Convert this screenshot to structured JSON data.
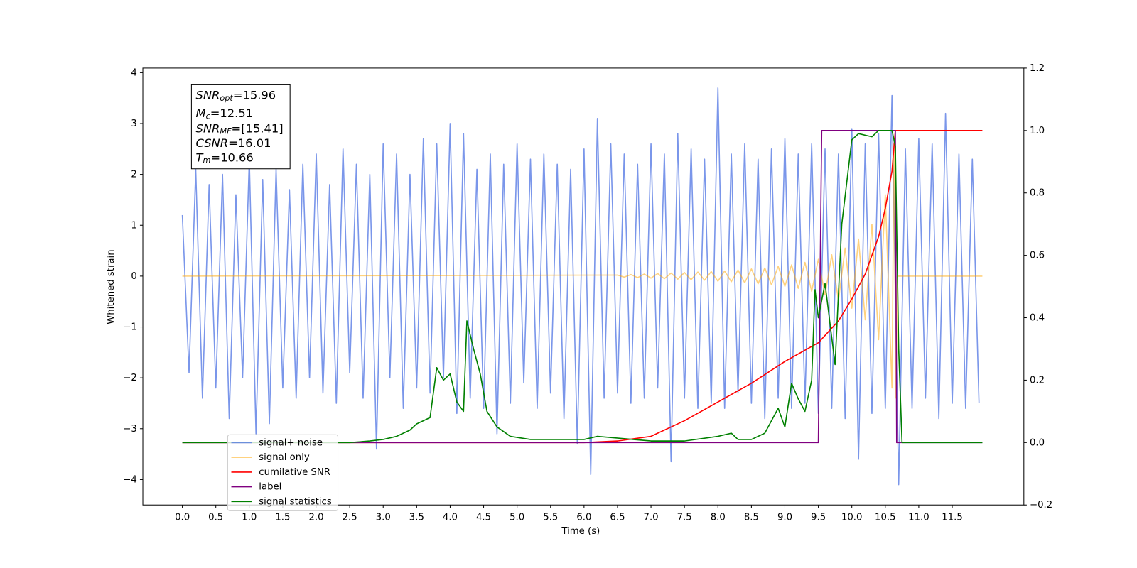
{
  "chart_data": {
    "type": "line",
    "xlabel": "Time (s)",
    "ylabel": "Whitened strain",
    "xlim": [
      -0.59,
      12.57
    ],
    "ylim": [
      -4.5,
      4.09
    ],
    "y2lim": [
      -0.2,
      1.2
    ],
    "xticks": [
      {
        "value": 0,
        "label": "0.0"
      },
      0.5,
      {
        "value": 1,
        "label": "1.0"
      },
      1.5,
      {
        "value": 2,
        "label": "2.0"
      },
      2.5,
      {
        "value": 3,
        "label": "3.0"
      },
      3.5,
      {
        "value": 4,
        "label": "4.0"
      },
      4.5,
      {
        "value": 5,
        "label": "5.0"
      },
      5.5,
      {
        "value": 6,
        "label": "6.0"
      },
      6.5,
      {
        "value": 7,
        "label": "7.0"
      },
      7.5,
      {
        "value": 8,
        "label": "8.0"
      },
      8.5,
      {
        "value": 9,
        "label": "9.0"
      },
      9.5,
      {
        "value": 10,
        "label": "10.0"
      },
      10.5,
      {
        "value": 11,
        "label": "11.0"
      },
      11.5
    ],
    "yticks": [
      {
        "value": -4,
        "label": "−4"
      },
      {
        "value": -3,
        "label": "−3"
      },
      {
        "value": -2,
        "label": "−2"
      },
      {
        "value": -1,
        "label": "−1"
      },
      0,
      1,
      2,
      3,
      4
    ],
    "y2ticks": [
      {
        "value": -0.2,
        "label": "−0.2"
      },
      {
        "value": 0,
        "label": "0.0"
      },
      0.2,
      0.4,
      0.6,
      0.8,
      {
        "value": 1,
        "label": "1.0"
      },
      1.2
    ],
    "legend": "lower left",
    "annotations": [
      {
        "base": "SNR",
        "sub": "opt",
        "text": "=15.96"
      },
      {
        "base": "M",
        "sub": "c",
        "text": "=12.51"
      },
      {
        "base": "SNR",
        "sub": "MF",
        "text": "=[15.41]"
      },
      {
        "base": "CSNR",
        "sub": null,
        "text": "=16.01"
      },
      {
        "base": "T",
        "sub": "m",
        "text": "=10.66"
      }
    ],
    "series": [
      {
        "name": "signal+ noise",
        "color": "#4169e1",
        "alpha": 0.7,
        "x": [
          0,
          0.1,
          0.2,
          0.3,
          0.4,
          0.5,
          0.6,
          0.7,
          0.8,
          0.9,
          1,
          1.1,
          1.2,
          1.3,
          1.4,
          1.5,
          1.6,
          1.7,
          1.8,
          1.9,
          2,
          2.1,
          2.2,
          2.3,
          2.4,
          2.5,
          2.6,
          2.7,
          2.8,
          2.9,
          3,
          3.1,
          3.2,
          3.3,
          3.4,
          3.5,
          3.6,
          3.7,
          3.8,
          3.9,
          4,
          4.1,
          4.2,
          4.3,
          4.4,
          4.5,
          4.6,
          4.7,
          4.8,
          4.9,
          5,
          5.1,
          5.2,
          5.3,
          5.4,
          5.5,
          5.6,
          5.7,
          5.8,
          5.9,
          6,
          6.1,
          6.2,
          6.3,
          6.4,
          6.5,
          6.6,
          6.7,
          6.8,
          6.9,
          7,
          7.1,
          7.2,
          7.3,
          7.4,
          7.5,
          7.6,
          7.7,
          7.8,
          7.9,
          8,
          8.1,
          8.2,
          8.3,
          8.4,
          8.5,
          8.6,
          8.7,
          8.8,
          8.9,
          9,
          9.1,
          9.2,
          9.3,
          9.4,
          9.5,
          9.6,
          9.7,
          9.8,
          9.9,
          10,
          10.1,
          10.2,
          10.3,
          10.4,
          10.5,
          10.6,
          10.7,
          10.8,
          10.9,
          11,
          11.1,
          11.2,
          11.3,
          11.4,
          11.5,
          11.6,
          11.7,
          11.8,
          11.9
        ],
        "values": [
          1.2,
          -1.9,
          2.1,
          -2.4,
          1.8,
          -2.2,
          2.0,
          -2.8,
          1.6,
          -2.0,
          2.3,
          -3.1,
          1.9,
          -2.9,
          2.1,
          -2.2,
          1.7,
          -2.4,
          2.2,
          -2.0,
          2.4,
          -2.3,
          1.8,
          -2.5,
          2.5,
          -1.9,
          2.2,
          -2.4,
          2.0,
          -3.4,
          2.6,
          -2.0,
          2.4,
          -2.6,
          2.0,
          -2.2,
          2.7,
          -2.3,
          2.6,
          -2.0,
          3.0,
          -2.7,
          2.8,
          -2.4,
          2.1,
          -2.6,
          2.4,
          -3.1,
          2.2,
          -2.5,
          2.6,
          -2.1,
          2.3,
          -2.6,
          2.4,
          -2.3,
          2.2,
          -2.8,
          2.1,
          -3.3,
          2.5,
          -3.9,
          3.1,
          -2.4,
          2.6,
          -2.3,
          2.4,
          -2.5,
          2.2,
          -2.4,
          2.6,
          -2.2,
          2.4,
          -3.65,
          2.8,
          -2.4,
          2.5,
          -2.6,
          2.3,
          -2.5,
          3.7,
          -2.6,
          2.4,
          -2.3,
          2.6,
          -2.5,
          2.3,
          -2.8,
          2.5,
          -2.4,
          2.7,
          -2.6,
          2.4,
          -2.5,
          2.6,
          -2.7,
          2.5,
          -2.6,
          2.4,
          -2.8,
          2.9,
          -3.6,
          2.6,
          -2.7,
          2.8,
          -2.6,
          3.55,
          -4.1,
          2.5,
          -2.6,
          2.7,
          -2.4,
          2.6,
          -2.8,
          3.2,
          -2.5,
          2.4,
          -2.6,
          2.3,
          -2.5
        ]
      },
      {
        "name": "signal only",
        "color": "#ffa500",
        "alpha": 0.5,
        "x": [
          0,
          6.5,
          6.6,
          6.7,
          6.8,
          6.9,
          7,
          7.1,
          7.2,
          7.3,
          7.4,
          7.5,
          7.6,
          7.7,
          7.8,
          7.9,
          8,
          8.1,
          8.2,
          8.3,
          8.4,
          8.5,
          8.6,
          8.7,
          8.8,
          8.9,
          9,
          9.1,
          9.2,
          9.3,
          9.4,
          9.5,
          9.6,
          9.7,
          9.8,
          9.9,
          10,
          10.1,
          10.2,
          10.3,
          10.4,
          10.5,
          10.6,
          10.63,
          10.66,
          10.68,
          11.95
        ],
        "values": [
          0,
          0.02,
          -0.02,
          0.03,
          -0.03,
          0.04,
          -0.04,
          0.05,
          -0.05,
          0.06,
          -0.06,
          0.07,
          -0.07,
          0.08,
          -0.08,
          0.09,
          -0.1,
          0.1,
          -0.11,
          0.12,
          -0.13,
          0.14,
          -0.15,
          0.16,
          -0.17,
          0.19,
          -0.2,
          0.22,
          -0.24,
          0.27,
          -0.3,
          0.33,
          -0.37,
          0.42,
          -0.48,
          0.55,
          -0.63,
          0.73,
          -0.86,
          1.02,
          -1.25,
          1.6,
          -2.2,
          2.6,
          -2.4,
          0,
          0
        ]
      },
      {
        "name": "cumilative SNR",
        "color": "#ff0000",
        "axis": "y2",
        "x": [
          0,
          6.0,
          6.5,
          7,
          7.5,
          8,
          8.5,
          9,
          9.5,
          9.8,
          10,
          10.2,
          10.4,
          10.5,
          10.6,
          10.65,
          11.95
        ],
        "values": [
          0,
          0,
          0.005,
          0.02,
          0.07,
          0.13,
          0.19,
          0.26,
          0.32,
          0.39,
          0.46,
          0.54,
          0.66,
          0.75,
          0.87,
          1.0,
          1.0
        ]
      },
      {
        "name": "label",
        "color": "#800080",
        "axis": "y2",
        "x": [
          0,
          9.5,
          9.55,
          10.65,
          10.67,
          11.95
        ],
        "values": [
          0,
          0,
          1,
          1,
          0,
          0
        ]
      },
      {
        "name": "signal statistics",
        "color": "#008000",
        "axis": "y2",
        "x": [
          0,
          2.5,
          2.8,
          3.0,
          3.2,
          3.4,
          3.5,
          3.7,
          3.8,
          3.9,
          4.0,
          4.1,
          4.2,
          4.25,
          4.35,
          4.45,
          4.55,
          4.7,
          4.9,
          5.2,
          5.6,
          6.0,
          6.2,
          7.0,
          7.5,
          8.0,
          8.2,
          8.3,
          8.5,
          8.7,
          8.9,
          9.0,
          9.1,
          9.2,
          9.3,
          9.4,
          9.45,
          9.5,
          9.6,
          9.75,
          9.85,
          10.0,
          10.1,
          10.3,
          10.4,
          10.6,
          10.65,
          10.7,
          10.75,
          11.95
        ],
        "values": [
          0,
          0,
          0.005,
          0.01,
          0.02,
          0.04,
          0.06,
          0.08,
          0.24,
          0.2,
          0.22,
          0.13,
          0.1,
          0.39,
          0.3,
          0.22,
          0.1,
          0.05,
          0.02,
          0.01,
          0.01,
          0.01,
          0.02,
          0.005,
          0.005,
          0.02,
          0.03,
          0.01,
          0.01,
          0.03,
          0.11,
          0.05,
          0.19,
          0.14,
          0.1,
          0.2,
          0.49,
          0.4,
          0.51,
          0.25,
          0.7,
          0.97,
          0.99,
          0.98,
          1.0,
          1.0,
          0.95,
          0.3,
          0,
          0
        ]
      }
    ]
  }
}
